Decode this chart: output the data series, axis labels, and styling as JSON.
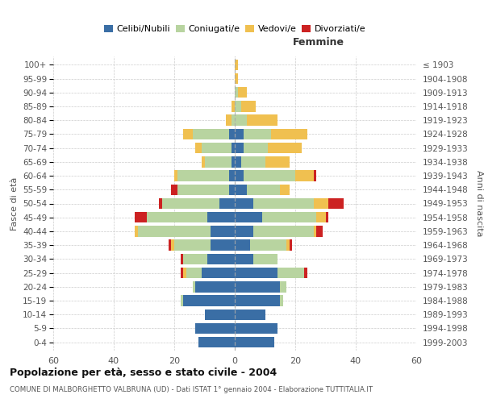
{
  "age_groups": [
    "0-4",
    "5-9",
    "10-14",
    "15-19",
    "20-24",
    "25-29",
    "30-34",
    "35-39",
    "40-44",
    "45-49",
    "50-54",
    "55-59",
    "60-64",
    "65-69",
    "70-74",
    "75-79",
    "80-84",
    "85-89",
    "90-94",
    "95-99",
    "100+"
  ],
  "birth_years": [
    "1999-2003",
    "1994-1998",
    "1989-1993",
    "1984-1988",
    "1979-1983",
    "1974-1978",
    "1969-1973",
    "1964-1968",
    "1959-1963",
    "1954-1958",
    "1949-1953",
    "1944-1948",
    "1939-1943",
    "1934-1938",
    "1929-1933",
    "1924-1928",
    "1919-1923",
    "1914-1918",
    "1909-1913",
    "1904-1908",
    "≤ 1903"
  ],
  "male": {
    "celibi": [
      12,
      13,
      10,
      17,
      13,
      11,
      9,
      8,
      8,
      9,
      5,
      2,
      2,
      1,
      1,
      2,
      0,
      0,
      0,
      0,
      0
    ],
    "coniugati": [
      0,
      0,
      0,
      1,
      1,
      5,
      8,
      12,
      24,
      20,
      19,
      17,
      17,
      9,
      10,
      12,
      1,
      0,
      0,
      0,
      0
    ],
    "vedovi": [
      0,
      0,
      0,
      0,
      0,
      1,
      0,
      1,
      1,
      0,
      0,
      0,
      1,
      1,
      2,
      3,
      2,
      1,
      0,
      0,
      0
    ],
    "divorziati": [
      0,
      0,
      0,
      0,
      0,
      1,
      1,
      1,
      0,
      4,
      1,
      2,
      0,
      0,
      0,
      0,
      0,
      0,
      0,
      0,
      0
    ]
  },
  "female": {
    "nubili": [
      13,
      14,
      10,
      15,
      15,
      14,
      6,
      5,
      6,
      9,
      6,
      4,
      3,
      2,
      3,
      3,
      0,
      0,
      0,
      0,
      0
    ],
    "coniugate": [
      0,
      0,
      0,
      1,
      2,
      9,
      8,
      12,
      20,
      18,
      20,
      11,
      17,
      8,
      8,
      9,
      4,
      2,
      1,
      0,
      0
    ],
    "vedove": [
      0,
      0,
      0,
      0,
      0,
      0,
      0,
      1,
      1,
      3,
      5,
      3,
      6,
      8,
      11,
      12,
      10,
      5,
      3,
      1,
      1
    ],
    "divorziate": [
      0,
      0,
      0,
      0,
      0,
      1,
      0,
      1,
      2,
      1,
      5,
      0,
      1,
      0,
      0,
      0,
      0,
      0,
      0,
      0,
      0
    ]
  },
  "colors": {
    "celibi": "#3a6ea5",
    "coniugati": "#b8d4a0",
    "vedovi": "#f0c050",
    "divorziati": "#cc2222"
  },
  "xlim": 60,
  "title": "Popolazione per età, sesso e stato civile - 2004",
  "subtitle": "COMUNE DI MALBORGHETTO VALBRUNA (UD) - Dati ISTAT 1° gennaio 2004 - Elaborazione TUTTITALIA.IT",
  "ylabel_left": "Fasce di età",
  "ylabel_right": "Anni di nascita",
  "xlabel_right": "Femmine"
}
